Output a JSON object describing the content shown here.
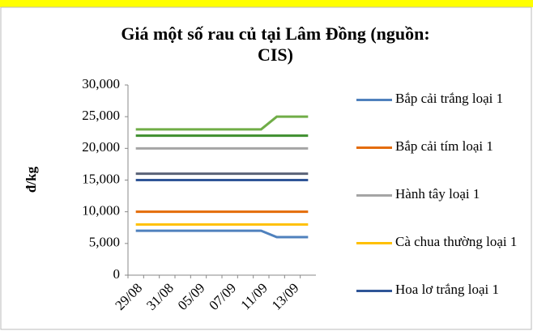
{
  "chart_data": {
    "type": "line",
    "title": "Giá một số rau củ tại Lâm Đồng (nguồn: CIS)",
    "y_label": "đ/kg",
    "categories": [
      "29/08",
      null,
      "31/08",
      null,
      "05/09",
      null,
      "07/09",
      null,
      "11/09",
      null,
      "13/09",
      null
    ],
    "series": [
      {
        "name": "Bắp cải trắng loại 1",
        "color": "#4f81bd",
        "values": [
          7000,
          7000,
          7000,
          7000,
          7000,
          7000,
          7000,
          7000,
          7000,
          6000,
          6000,
          6000
        ]
      },
      {
        "name": "Bắp cải tím loại 1",
        "color": "#e46c0a",
        "values": [
          10000,
          10000,
          10000,
          10000,
          10000,
          10000,
          10000,
          10000,
          10000,
          10000,
          10000,
          10000
        ]
      },
      {
        "name": "Hành tây loại 1",
        "color": "#a5a5a5",
        "values": [
          20000,
          20000,
          20000,
          20000,
          20000,
          20000,
          20000,
          20000,
          20000,
          20000,
          20000,
          20000
        ]
      },
      {
        "name": "Cà chua thường loại 1",
        "color": "#ffc000",
        "values": [
          8000,
          8000,
          8000,
          8000,
          8000,
          8000,
          8000,
          8000,
          8000,
          8000,
          8000,
          8000
        ]
      },
      {
        "name": "Hoa lơ trắng loại 1",
        "color": "#2f5597",
        "values": [
          15000,
          15000,
          15000,
          15000,
          15000,
          15000,
          15000,
          15000,
          15000,
          15000,
          15000,
          15000
        ]
      },
      {
        "color": "#70ad47",
        "values": [
          23000,
          23000,
          23000,
          23000,
          23000,
          23000,
          23000,
          23000,
          23000,
          25000,
          25000,
          25000
        ]
      },
      {
        "color": "#3f8f2f",
        "values": [
          22000,
          22000,
          22000,
          22000,
          22000,
          22000,
          22000,
          22000,
          22000,
          22000,
          22000,
          22000
        ]
      },
      {
        "color": "#5a6378",
        "values": [
          16000,
          16000,
          16000,
          16000,
          16000,
          16000,
          16000,
          16000,
          16000,
          16000,
          16000,
          16000
        ]
      }
    ],
    "ylim": [
      0,
      30000
    ],
    "yticks": [
      0,
      {
        "value": 5000,
        "label": "5,000"
      },
      {
        "value": 10000,
        "label": "10,000"
      },
      {
        "value": 15000,
        "label": "15,000"
      },
      {
        "value": 20000,
        "label": "20,000"
      },
      {
        "value": 25000,
        "label": "25,000"
      },
      {
        "value": 30000,
        "label": "30,000"
      }
    ],
    "grid": false
  }
}
